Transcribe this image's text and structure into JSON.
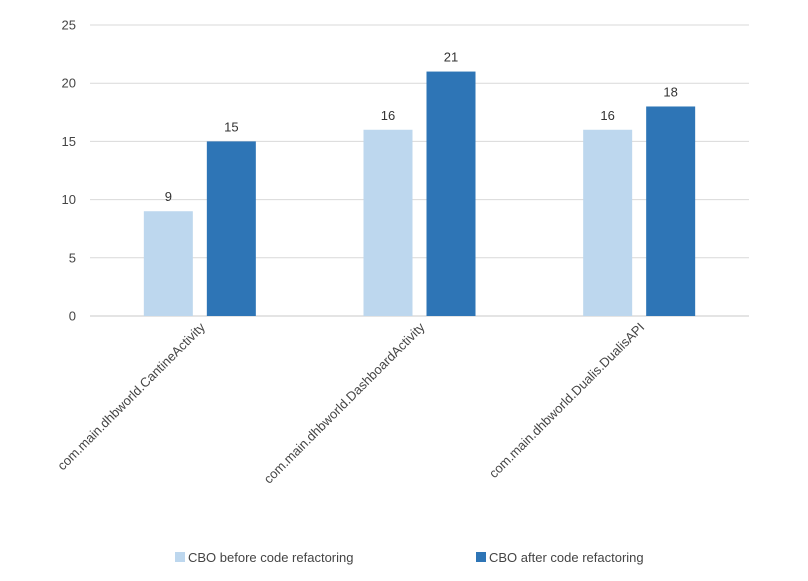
{
  "chart_data": {
    "type": "bar",
    "categories": [
      "com.main.dhbworld.CantineActivity",
      "com.main.dhbworld.DashboardActivity",
      "com.main.dhbworld.Dualis.DualisAPI"
    ],
    "series": [
      {
        "name": "CBO before code refactoring",
        "values": [
          9,
          16,
          16
        ],
        "color": "#bdd7ee"
      },
      {
        "name": "CBO after code refactoring",
        "values": [
          15,
          21,
          18
        ],
        "color": "#2e75b6"
      }
    ],
    "ylim": [
      0,
      25
    ],
    "yticks": [
      0,
      5,
      10,
      15,
      20,
      25
    ],
    "grid": true,
    "legend": "bottom",
    "data_labels": true
  }
}
